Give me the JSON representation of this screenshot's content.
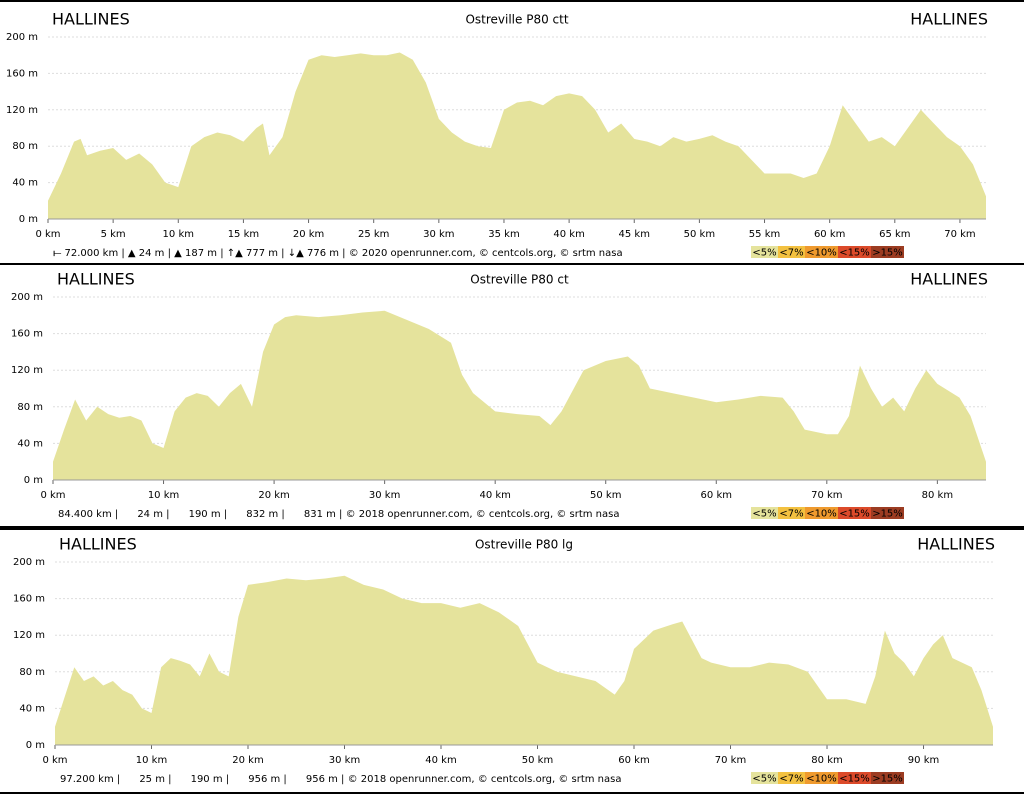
{
  "chart_data": [
    {
      "type": "area",
      "title": "Ostreville P80 ctt",
      "start_label": "HALLINES",
      "end_label": "HALLINES",
      "color": "#e5e39c",
      "grid": true,
      "x": [
        0,
        1,
        2,
        2.5,
        3,
        4,
        5,
        6,
        7,
        8,
        9,
        10,
        11,
        12,
        13,
        14,
        15,
        16,
        16.5,
        17,
        18,
        19,
        20,
        21,
        22,
        23,
        24,
        25,
        26,
        27,
        28,
        29,
        30,
        31,
        32,
        33,
        34,
        35,
        36,
        37,
        38,
        39,
        40,
        41,
        42,
        43,
        44,
        45,
        46,
        47,
        48,
        49,
        50,
        51,
        52,
        53,
        54,
        55,
        56,
        57,
        58,
        59,
        60,
        61,
        62,
        63,
        64,
        65,
        66,
        67,
        68,
        69,
        70,
        71,
        72
      ],
      "values": [
        20,
        50,
        85,
        88,
        70,
        75,
        78,
        65,
        72,
        60,
        40,
        35,
        80,
        90,
        95,
        92,
        85,
        100,
        105,
        70,
        90,
        140,
        175,
        180,
        178,
        180,
        182,
        180,
        180,
        183,
        175,
        150,
        110,
        95,
        85,
        80,
        78,
        120,
        128,
        130,
        125,
        135,
        138,
        135,
        120,
        95,
        105,
        88,
        85,
        80,
        90,
        85,
        88,
        92,
        85,
        80,
        65,
        50,
        50,
        50,
        45,
        50,
        80,
        125,
        105,
        85,
        90,
        80,
        100,
        120,
        105,
        90,
        80,
        60,
        25
      ],
      "xlim": [
        0,
        72
      ],
      "ylim": [
        0,
        200
      ],
      "xticks": [
        {
          "value": 0,
          "label": "0 km"
        },
        {
          "value": 5,
          "label": "5 km"
        },
        {
          "value": 10,
          "label": "10 km"
        },
        {
          "value": 15,
          "label": "15 km"
        },
        {
          "value": 20,
          "label": "20 km"
        },
        {
          "value": 25,
          "label": "25 km"
        },
        {
          "value": 30,
          "label": "30 km"
        },
        {
          "value": 35,
          "label": "35 km"
        },
        {
          "value": 40,
          "label": "40 km"
        },
        {
          "value": 45,
          "label": "45 km"
        },
        {
          "value": 50,
          "label": "50 km"
        },
        {
          "value": 55,
          "label": "55 km"
        },
        {
          "value": 60,
          "label": "60 km"
        },
        {
          "value": 65,
          "label": "65 km"
        },
        {
          "value": 70,
          "label": "70 km"
        }
      ],
      "yticks": [
        {
          "value": 0,
          "label": "0 m"
        },
        {
          "value": 40,
          "label": "40 m"
        },
        {
          "value": 80,
          "label": "80 m"
        },
        {
          "value": 120,
          "label": "120 m"
        },
        {
          "value": 160,
          "label": "160 m"
        },
        {
          "value": 200,
          "label": "200 m"
        }
      ],
      "footer": "⟝ 72.000 km | ▲ 24 m | ▲ 187 m | ↑▲ 777 m | ↓▲ 776 m | © 2020 openrunner.com, © centcols.org, © srtm nasa",
      "slope_legend": [
        {
          "label": "<5%",
          "color": "#e5e39c"
        },
        {
          "label": "<7%",
          "color": "#f3c140"
        },
        {
          "label": "<10%",
          "color": "#ef9a2e"
        },
        {
          "label": "<15%",
          "color": "#dc4a2a"
        },
        {
          "label": ">15%",
          "color": "#9c3c22"
        }
      ]
    },
    {
      "type": "area",
      "title": "Ostreville P80 ct",
      "start_label": "HALLINES",
      "end_label": "HALLINES",
      "color": "#e5e39c",
      "grid": true,
      "x": [
        0,
        1,
        2,
        3,
        4,
        5,
        6,
        7,
        8,
        9,
        10,
        11,
        12,
        13,
        14,
        15,
        16,
        17,
        18,
        19,
        20,
        21,
        22,
        24,
        26,
        28,
        30,
        32,
        34,
        36,
        37,
        38,
        39,
        40,
        42,
        44,
        45,
        46,
        48,
        50,
        52,
        53,
        54,
        56,
        58,
        60,
        62,
        64,
        66,
        67,
        68,
        70,
        71,
        72,
        73,
        74,
        75,
        76,
        77,
        78,
        79,
        80,
        82,
        83,
        84.4
      ],
      "values": [
        20,
        55,
        88,
        65,
        80,
        72,
        68,
        70,
        65,
        40,
        35,
        75,
        90,
        95,
        92,
        80,
        95,
        105,
        80,
        140,
        170,
        178,
        180,
        178,
        180,
        183,
        185,
        175,
        165,
        150,
        115,
        95,
        85,
        75,
        72,
        70,
        60,
        75,
        120,
        130,
        135,
        125,
        100,
        95,
        90,
        85,
        88,
        92,
        90,
        75,
        55,
        50,
        50,
        70,
        125,
        100,
        80,
        90,
        75,
        100,
        120,
        105,
        90,
        70,
        20
      ],
      "xlim": [
        0,
        84.4
      ],
      "ylim": [
        0,
        200
      ],
      "xticks": [
        {
          "value": 0,
          "label": "0 km"
        },
        {
          "value": 10,
          "label": "10 km"
        },
        {
          "value": 20,
          "label": "20 km"
        },
        {
          "value": 30,
          "label": "30 km"
        },
        {
          "value": 40,
          "label": "40 km"
        },
        {
          "value": 50,
          "label": "50 km"
        },
        {
          "value": 60,
          "label": "60 km"
        },
        {
          "value": 70,
          "label": "70 km"
        },
        {
          "value": 80,
          "label": "80 km"
        }
      ],
      "yticks": [
        {
          "value": 0,
          "label": "0 m"
        },
        {
          "value": 40,
          "label": "40 m"
        },
        {
          "value": 80,
          "label": "80 m"
        },
        {
          "value": 120,
          "label": "120 m"
        },
        {
          "value": 160,
          "label": "160 m"
        },
        {
          "value": 200,
          "label": "200 m"
        }
      ],
      "footer": "84.400 km |      24 m |      190 m |      832 m |      831 m | © 2018 openrunner.com, © centcols.org, © srtm nasa",
      "slope_legend": [
        {
          "label": "<5%",
          "color": "#e5e39c"
        },
        {
          "label": "<7%",
          "color": "#f3c140"
        },
        {
          "label": "<10%",
          "color": "#ef9a2e"
        },
        {
          "label": "<15%",
          "color": "#dc4a2a"
        },
        {
          "label": ">15%",
          "color": "#9c3c22"
        }
      ]
    },
    {
      "type": "area",
      "title": "Ostreville P80 lg",
      "start_label": "HALLINES",
      "end_label": "HALLINES",
      "color": "#e5e39c",
      "grid": true,
      "x": [
        0,
        2,
        3,
        4,
        5,
        6,
        7,
        8,
        9,
        10,
        11,
        12,
        13,
        14,
        15,
        16,
        17,
        18,
        19,
        20,
        22,
        24,
        26,
        28,
        30,
        32,
        34,
        36,
        38,
        40,
        42,
        44,
        46,
        48,
        50,
        52,
        54,
        56,
        58,
        59,
        60,
        62,
        64,
        65,
        66,
        67,
        68,
        70,
        72,
        74,
        76,
        78,
        80,
        82,
        84,
        85,
        86,
        87,
        88,
        89,
        90,
        91,
        92,
        93,
        95,
        96,
        97.2
      ],
      "values": [
        20,
        85,
        70,
        75,
        65,
        70,
        60,
        55,
        40,
        35,
        85,
        95,
        92,
        88,
        75,
        100,
        80,
        75,
        140,
        175,
        178,
        182,
        180,
        182,
        185,
        175,
        170,
        160,
        155,
        155,
        150,
        155,
        145,
        130,
        90,
        80,
        75,
        70,
        55,
        70,
        105,
        125,
        132,
        135,
        115,
        95,
        90,
        85,
        85,
        90,
        88,
        80,
        50,
        50,
        45,
        75,
        125,
        100,
        90,
        75,
        95,
        110,
        120,
        95,
        85,
        60,
        20
      ],
      "xlim": [
        0,
        97.2
      ],
      "ylim": [
        0,
        200
      ],
      "xticks": [
        {
          "value": 0,
          "label": "0 km"
        },
        {
          "value": 10,
          "label": "10 km"
        },
        {
          "value": 20,
          "label": "20 km"
        },
        {
          "value": 30,
          "label": "30 km"
        },
        {
          "value": 40,
          "label": "40 km"
        },
        {
          "value": 50,
          "label": "50 km"
        },
        {
          "value": 60,
          "label": "60 km"
        },
        {
          "value": 70,
          "label": "70 km"
        },
        {
          "value": 80,
          "label": "80 km"
        },
        {
          "value": 90,
          "label": "90 km"
        }
      ],
      "yticks": [
        {
          "value": 0,
          "label": "0 m"
        },
        {
          "value": 40,
          "label": "40 m"
        },
        {
          "value": 80,
          "label": "80 m"
        },
        {
          "value": 120,
          "label": "120 m"
        },
        {
          "value": 160,
          "label": "160 m"
        },
        {
          "value": 200,
          "label": "200 m"
        }
      ],
      "footer": "97.200 km |      25 m |      190 m |      956 m |      956 m | © 2018 openrunner.com, © centcols.org, © srtm nasa",
      "slope_legend": [
        {
          "label": "<5%",
          "color": "#e5e39c"
        },
        {
          "label": "<7%",
          "color": "#f3c140"
        },
        {
          "label": "<10%",
          "color": "#ef9a2e"
        },
        {
          "label": "<15%",
          "color": "#dc4a2a"
        },
        {
          "label": ">15%",
          "color": "#9c3c22"
        }
      ]
    }
  ]
}
